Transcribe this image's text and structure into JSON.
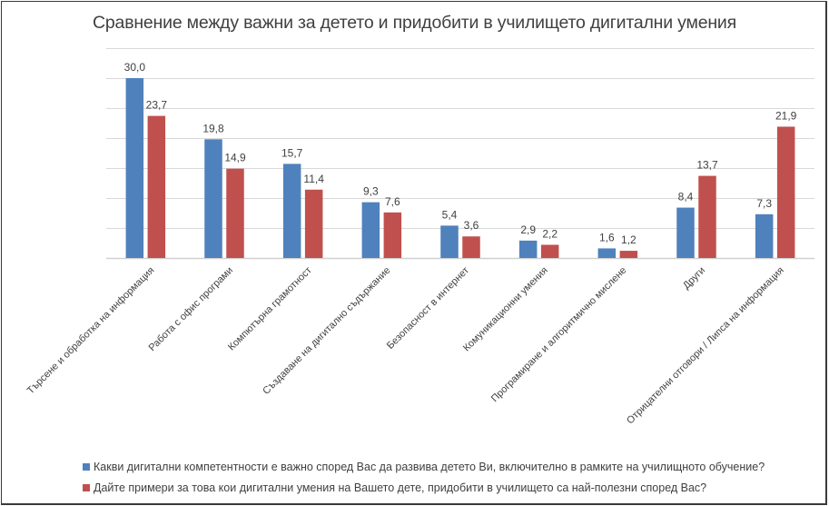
{
  "chart_data": {
    "type": "bar",
    "title": "Сравнение между важни за детето и придобити в училището дигитални умения",
    "xlabel": "",
    "ylabel": "",
    "ylim": [
      0,
      35
    ],
    "grid": true,
    "gridline_step": 5,
    "legend_position": "bottom",
    "categories": [
      "Търсене и обработка на информация",
      "Работа с офис програми",
      "Компютърна грамотност",
      "Създаване на дигитално съдържание",
      "Безопасност в интернет",
      "Комуникационни умения",
      "Програмиране и алгоритмично мислене",
      "Други",
      "Отрицателни отговори / Липса на информация"
    ],
    "series": [
      {
        "name": "Какви дигитални компетентности е важно според Вас да развива детето Ви, включително в рамките на училищното обучение?",
        "color": "#4f81bd",
        "values": [
          30.0,
          19.8,
          15.7,
          9.3,
          5.4,
          2.9,
          1.6,
          8.4,
          7.3
        ],
        "labels": [
          "30,0",
          "19,8",
          "15,7",
          "9,3",
          "5,4",
          "2,9",
          "1,6",
          "8,4",
          "7,3"
        ]
      },
      {
        "name": "Дайте примери за това кои дигитални умения на Вашето дете, придобити в училището са най-полезни според Вас?",
        "color": "#c0504d",
        "values": [
          23.7,
          14.9,
          11.4,
          7.6,
          3.6,
          2.2,
          1.2,
          13.7,
          21.9
        ],
        "labels": [
          "23,7",
          "14,9",
          "11,4",
          "7,6",
          "3,6",
          "2,2",
          "1,2",
          "13,7",
          "21,9"
        ]
      }
    ]
  }
}
